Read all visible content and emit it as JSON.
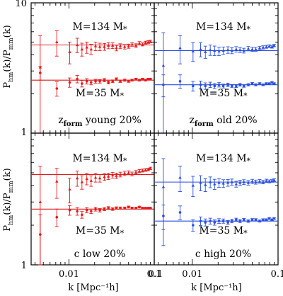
{
  "figure": {
    "ylabel_main": "P",
    "ylabel_sub1": "hm",
    "ylabel_mid": "(k)/P",
    "ylabel_sub2": "mm",
    "ylabel_end": "(k)",
    "xlabel": "k [Mpc⁻¹h]"
  },
  "chart_data": [
    {
      "type": "scatter",
      "panel": "top-left",
      "color": "#e31a1c",
      "label_main": "z",
      "label_sub": "form",
      "label_rest": " young 20%",
      "xlog": true,
      "ylog": true,
      "xlim": [
        0.0036,
        0.1
      ],
      "ylim": [
        1,
        10
      ],
      "x_tick_labels": [],
      "y_tick_labels": [
        "1",
        "10"
      ],
      "series": [
        {
          "name": "M=134 M*",
          "ref": 4.75,
          "x": [
            0.0046,
            0.0072,
            0.0102,
            0.0125,
            0.0142,
            0.0162,
            0.0182,
            0.0205,
            0.023,
            0.026,
            0.029,
            0.0325,
            0.036,
            0.04,
            0.045,
            0.05,
            0.055,
            0.061,
            0.067,
            0.073,
            0.079,
            0.085,
            0.09
          ],
          "y": [
            3.2,
            5.0,
            4.2,
            4.75,
            4.4,
            4.55,
            4.4,
            4.65,
            4.6,
            4.6,
            4.7,
            4.7,
            4.5,
            4.65,
            4.6,
            4.65,
            4.8,
            4.7,
            4.9,
            4.8,
            4.95,
            5.0,
            5.05
          ],
          "err": [
            2.4,
            1.1,
            0.8,
            0.6,
            0.5,
            0.45,
            0.4,
            0.35,
            0.3,
            0.28,
            0.26,
            0.24,
            0.22,
            0.2,
            0.18,
            0.17,
            0.16,
            0.15,
            0.14,
            0.13,
            0.12,
            0.12,
            0.11
          ]
        },
        {
          "name": "M=35 M*",
          "ref": 2.55,
          "x": [
            0.0046,
            0.0072,
            0.0102,
            0.0125,
            0.0142,
            0.0162,
            0.0182,
            0.0205,
            0.023,
            0.026,
            0.029,
            0.0325,
            0.036,
            0.04,
            0.045,
            0.05,
            0.055,
            0.061,
            0.067,
            0.073,
            0.079,
            0.085,
            0.09
          ],
          "y": [
            2.9,
            2.2,
            2.45,
            2.6,
            2.4,
            2.5,
            2.45,
            2.5,
            2.5,
            2.55,
            2.45,
            2.5,
            2.6,
            2.5,
            2.55,
            2.5,
            2.55,
            2.6,
            2.55,
            2.6,
            2.55,
            2.6,
            2.6
          ],
          "err": [
            0.35,
            0.28,
            0.2,
            0.17,
            0.14,
            0.12,
            0.1,
            0.09,
            0.08,
            0.07,
            0.065,
            0.06,
            0.055,
            0.05,
            0.048,
            0.045,
            0.042,
            0.04,
            0.038,
            0.036,
            0.034,
            0.033,
            0.032
          ]
        }
      ]
    },
    {
      "type": "scatter",
      "panel": "top-right",
      "color": "#2a4fe0",
      "label_main": "z",
      "label_sub": "form",
      "label_rest": " old 20%",
      "xlog": true,
      "ylog": true,
      "xlim": [
        0.0036,
        0.1
      ],
      "ylim": [
        1,
        10
      ],
      "x_tick_labels": [],
      "y_tick_labels": [],
      "series": [
        {
          "name": "M=134 M*",
          "ref": 4.3,
          "x": [
            0.0046,
            0.0072,
            0.0102,
            0.0125,
            0.0142,
            0.0162,
            0.0182,
            0.0205,
            0.023,
            0.026,
            0.029,
            0.0325,
            0.036,
            0.04,
            0.045,
            0.05,
            0.055,
            0.061,
            0.067,
            0.073,
            0.079,
            0.085,
            0.09
          ],
          "y": [
            3.3,
            4.5,
            4.25,
            4.4,
            4.2,
            4.35,
            4.3,
            4.25,
            4.3,
            4.35,
            4.3,
            4.4,
            4.35,
            4.3,
            4.45,
            4.4,
            4.4,
            4.5,
            4.55,
            4.6,
            4.65,
            4.6,
            4.7
          ],
          "err": [
            2.6,
            1.1,
            0.7,
            0.55,
            0.45,
            0.4,
            0.36,
            0.32,
            0.28,
            0.25,
            0.23,
            0.21,
            0.19,
            0.18,
            0.17,
            0.16,
            0.15,
            0.14,
            0.13,
            0.12,
            0.11,
            0.11,
            0.1
          ]
        },
        {
          "name": "M=35 M*",
          "ref": 2.35,
          "x": [
            0.0046,
            0.0072,
            0.0102,
            0.0125,
            0.0142,
            0.0162,
            0.0182,
            0.0205,
            0.023,
            0.026,
            0.029,
            0.0325,
            0.036,
            0.04,
            0.045,
            0.05,
            0.055,
            0.061,
            0.067,
            0.073,
            0.079,
            0.085,
            0.09
          ],
          "y": [
            2.35,
            2.5,
            2.3,
            2.35,
            2.3,
            2.35,
            2.3,
            2.35,
            2.3,
            2.35,
            2.3,
            2.3,
            2.35,
            2.3,
            2.35,
            2.4,
            2.35,
            2.4,
            2.35,
            2.4,
            2.4,
            2.45,
            2.4
          ],
          "err": [
            0.45,
            0.3,
            0.2,
            0.16,
            0.13,
            0.11,
            0.1,
            0.09,
            0.08,
            0.07,
            0.065,
            0.06,
            0.055,
            0.05,
            0.048,
            0.045,
            0.042,
            0.04,
            0.038,
            0.036,
            0.034,
            0.033,
            0.032
          ]
        }
      ]
    },
    {
      "type": "scatter",
      "panel": "bottom-left",
      "color": "#e31a1c",
      "label_main": "c low 20%",
      "label_sub": "",
      "label_rest": "",
      "xlog": true,
      "ylog": true,
      "xlim": [
        0.0036,
        0.1
      ],
      "ylim": [
        1,
        10
      ],
      "x_tick_labels": [
        "0.01",
        "0.1"
      ],
      "y_tick_labels": [
        "1"
      ],
      "series": [
        {
          "name": "M=134 M*",
          "ref": 4.85,
          "x": [
            0.0046,
            0.0072,
            0.0102,
            0.0125,
            0.0142,
            0.0162,
            0.0182,
            0.0205,
            0.023,
            0.026,
            0.029,
            0.0325,
            0.036,
            0.04,
            0.045,
            0.05,
            0.055,
            0.061,
            0.067,
            0.073,
            0.079,
            0.085,
            0.09
          ],
          "y": [
            3.0,
            4.3,
            3.75,
            4.55,
            4.25,
            4.5,
            4.35,
            4.6,
            4.55,
            4.65,
            4.7,
            4.8,
            4.75,
            4.85,
            4.95,
            5.0,
            4.9,
            5.05,
            5.15,
            5.2,
            5.25,
            5.3,
            5.4
          ],
          "err": [
            2.6,
            1.1,
            0.8,
            0.6,
            0.5,
            0.45,
            0.4,
            0.35,
            0.3,
            0.28,
            0.26,
            0.24,
            0.22,
            0.2,
            0.18,
            0.17,
            0.16,
            0.15,
            0.14,
            0.13,
            0.12,
            0.12,
            0.11
          ]
        },
        {
          "name": "M=35 M*",
          "ref": 2.65,
          "x": [
            0.0046,
            0.0072,
            0.0102,
            0.0125,
            0.0142,
            0.0162,
            0.0182,
            0.0205,
            0.023,
            0.026,
            0.029,
            0.0325,
            0.036,
            0.04,
            0.045,
            0.05,
            0.055,
            0.061,
            0.067,
            0.073,
            0.079,
            0.085,
            0.09
          ],
          "y": [
            1.7,
            2.3,
            2.6,
            2.55,
            2.4,
            2.6,
            2.55,
            2.65,
            2.6,
            2.65,
            2.7,
            2.65,
            2.7,
            2.7,
            2.7,
            2.75,
            2.7,
            2.7,
            2.75,
            2.7,
            2.7,
            2.7,
            2.7
          ],
          "err": [
            0.7,
            0.35,
            0.22,
            0.17,
            0.14,
            0.12,
            0.1,
            0.09,
            0.08,
            0.07,
            0.065,
            0.06,
            0.055,
            0.05,
            0.048,
            0.045,
            0.042,
            0.04,
            0.038,
            0.036,
            0.034,
            0.033,
            0.032
          ]
        }
      ]
    },
    {
      "type": "scatter",
      "panel": "bottom-right",
      "color": "#2a4fe0",
      "label_main": "c high 20%",
      "label_sub": "",
      "label_rest": "",
      "xlog": true,
      "ylog": true,
      "xlim": [
        0.0036,
        0.1
      ],
      "ylim": [
        1,
        10
      ],
      "x_tick_labels": [
        "0.1",
        "0.01",
        "0.1"
      ],
      "y_tick_labels": [],
      "series": [
        {
          "name": "M=134 M*",
          "ref": 4.25,
          "x": [
            0.0046,
            0.0072,
            0.0102,
            0.0125,
            0.0142,
            0.0162,
            0.0182,
            0.0205,
            0.023,
            0.026,
            0.029,
            0.0325,
            0.036,
            0.04,
            0.045,
            0.05,
            0.055,
            0.061,
            0.067,
            0.073,
            0.079,
            0.085,
            0.09
          ],
          "y": [
            3.9,
            4.6,
            4.0,
            4.2,
            4.05,
            4.25,
            4.1,
            4.2,
            4.15,
            4.2,
            4.25,
            4.1,
            4.2,
            4.25,
            4.2,
            4.3,
            4.25,
            4.3,
            4.25,
            4.35,
            4.3,
            4.35,
            4.4
          ],
          "err": [
            2.5,
            1.0,
            0.7,
            0.55,
            0.45,
            0.4,
            0.36,
            0.32,
            0.28,
            0.25,
            0.23,
            0.21,
            0.19,
            0.18,
            0.17,
            0.16,
            0.15,
            0.14,
            0.13,
            0.12,
            0.11,
            0.11,
            0.1
          ]
        },
        {
          "name": "M=35 M*",
          "ref": 2.15,
          "x": [
            0.0046,
            0.0072,
            0.0102,
            0.0125,
            0.0142,
            0.0162,
            0.0182,
            0.0205,
            0.023,
            0.026,
            0.029,
            0.0325,
            0.036,
            0.04,
            0.045,
            0.05,
            0.055,
            0.061,
            0.067,
            0.073,
            0.079,
            0.085,
            0.09
          ],
          "y": [
            2.35,
            2.5,
            2.0,
            2.15,
            2.1,
            2.15,
            2.1,
            2.15,
            2.15,
            2.1,
            2.15,
            2.2,
            2.15,
            2.2,
            2.15,
            2.2,
            2.2,
            2.15,
            2.2,
            2.2,
            2.25,
            2.2,
            2.25
          ],
          "err": [
            0.5,
            0.3,
            0.2,
            0.16,
            0.13,
            0.11,
            0.1,
            0.09,
            0.08,
            0.07,
            0.065,
            0.06,
            0.055,
            0.05,
            0.048,
            0.045,
            0.042,
            0.04,
            0.038,
            0.036,
            0.034,
            0.033,
            0.032
          ]
        }
      ]
    }
  ]
}
